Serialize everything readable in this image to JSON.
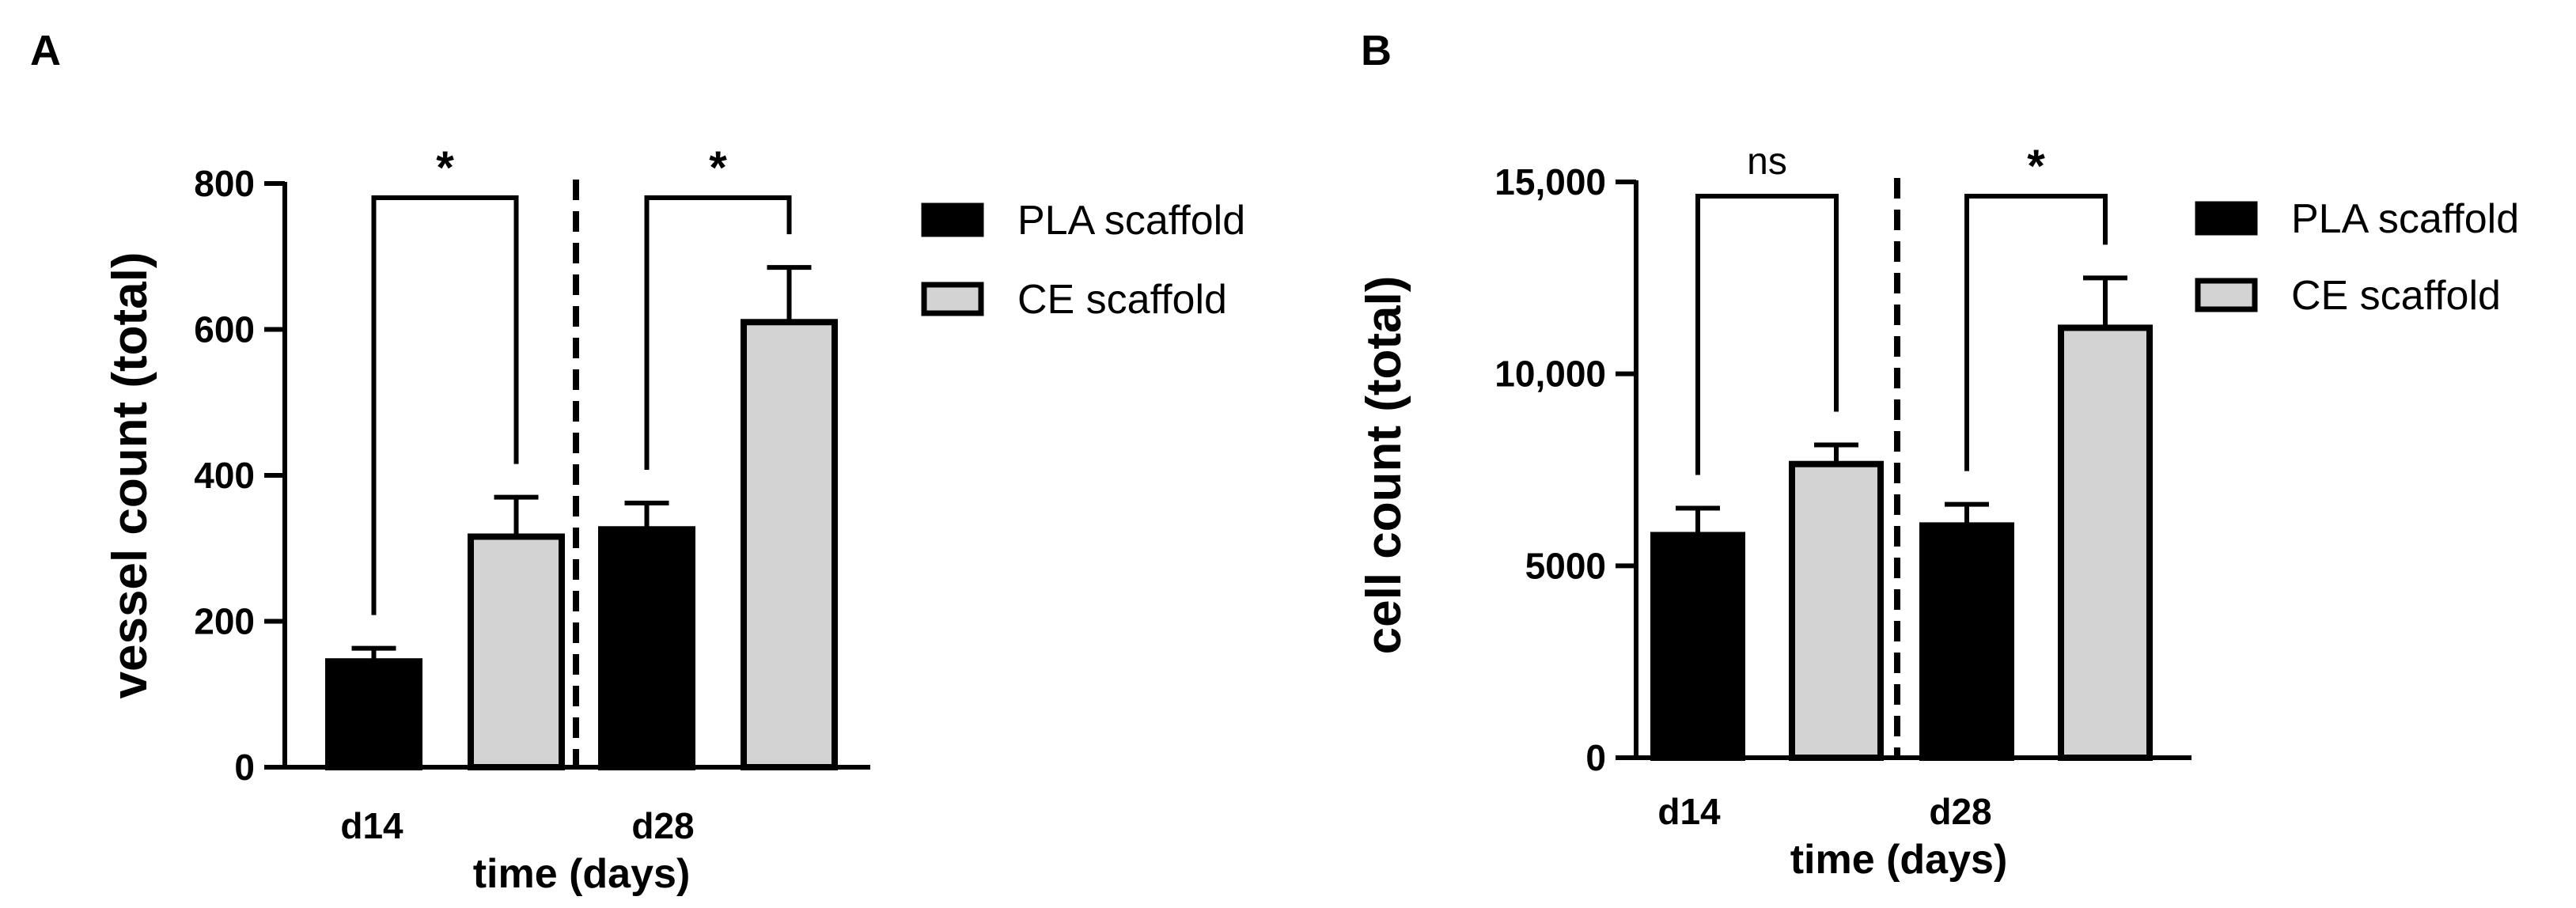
{
  "chart_data": [
    {
      "type": "bar",
      "panel": "A",
      "categories": [
        "d14",
        "d28"
      ],
      "series": [
        {
          "name": "PLA scaffold",
          "color": "#000000",
          "values": [
            145,
            326
          ],
          "errors": [
            18,
            36
          ]
        },
        {
          "name": "CE scaffold",
          "color": "#d3d3d3",
          "values": [
            316,
            610
          ],
          "errors": [
            54,
            75
          ]
        }
      ],
      "xlabel": "time (days)",
      "ylabel": "vessel count (total)",
      "ylim": [
        0,
        800
      ],
      "yticks": [
        "0",
        "200",
        "400",
        "600",
        "800"
      ],
      "ytick_values": [
        0,
        200,
        400,
        600,
        800
      ],
      "significance": [
        "*",
        "*"
      ],
      "legend_position": "right",
      "grid": false
    },
    {
      "type": "bar",
      "panel": "B",
      "categories": [
        "d14",
        "d28"
      ],
      "series": [
        {
          "name": "PLA scaffold",
          "color": "#000000",
          "values": [
            5800,
            6050
          ],
          "errors": [
            700,
            550
          ]
        },
        {
          "name": "CE scaffold",
          "color": "#d3d3d3",
          "values": [
            7650,
            11200
          ],
          "errors": [
            500,
            1300
          ]
        }
      ],
      "xlabel": "time (days)",
      "ylabel": "cell count (total)",
      "ylim": [
        0,
        15000
      ],
      "yticks": [
        "0",
        "5000",
        "10,000",
        "15,000"
      ],
      "ytick_values": [
        0,
        5000,
        10000,
        15000
      ],
      "significance": [
        "ns",
        "*"
      ],
      "legend_position": "right",
      "grid": false
    }
  ]
}
